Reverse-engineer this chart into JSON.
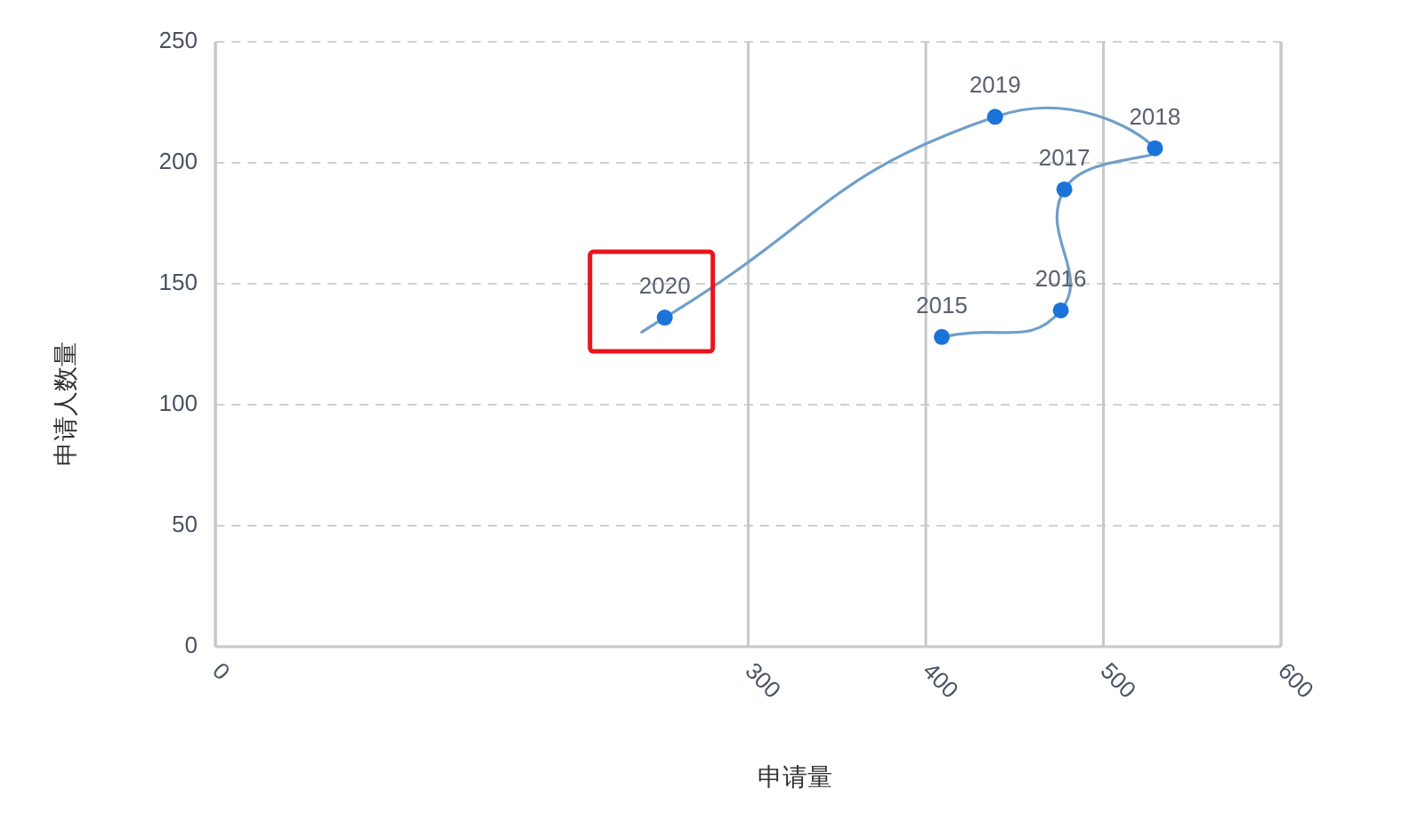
{
  "chart_data": {
    "type": "line",
    "xlabel": "申请量",
    "ylabel": "申请人数量",
    "xlim": [
      0,
      600
    ],
    "xticks": [
      0,
      300,
      400,
      500,
      600
    ],
    "ylim": [
      0,
      250
    ],
    "yticks": [
      0,
      50,
      100,
      150,
      200,
      250
    ],
    "grid": true,
    "series": [
      {
        "color": "#6f9fc9",
        "x": [
          409,
          476,
          478,
          529,
          439,
          253,
          240
        ],
        "values": [
          128,
          139,
          189,
          206,
          219,
          136,
          130
        ],
        "marker": "none",
        "line_style": "solid"
      },
      {
        "type": "scatter",
        "color": "#1a73d9",
        "x": [
          409,
          476,
          478,
          529,
          439,
          253
        ],
        "values": [
          128,
          139,
          189,
          206,
          219,
          136
        ],
        "marker": "circle"
      }
    ],
    "annotations": [
      {
        "text": "2015",
        "x": 409,
        "y": 128
      },
      {
        "text": "2016",
        "x": 476,
        "y": 139
      },
      {
        "text": "2017",
        "x": 478,
        "y": 189
      },
      {
        "text": "2018",
        "x": 529,
        "y": 206
      },
      {
        "text": "2019",
        "x": 439,
        "y": 219
      },
      {
        "text": "2020",
        "x": 253,
        "y": 136
      }
    ]
  }
}
